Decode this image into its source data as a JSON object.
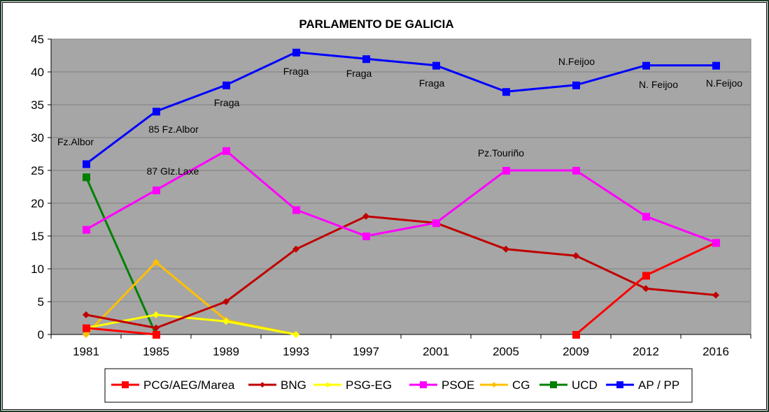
{
  "chart_data": {
    "type": "line",
    "title": "PARLAMENTO DE GALICIA",
    "xlabel": "",
    "ylabel": "",
    "ylim": [
      0,
      45
    ],
    "yticks": [
      0,
      5,
      10,
      15,
      20,
      25,
      30,
      35,
      40,
      45
    ],
    "grid": true,
    "legend_position": "bottom",
    "categories": [
      "1981",
      "1985",
      "1989",
      "1993",
      "1997",
      "2001",
      "2005",
      "2009",
      "2012",
      "2016"
    ],
    "series": [
      {
        "name": "PCG/AEG/Marea",
        "color": "#ff0000",
        "marker": "square",
        "values": [
          1,
          0,
          null,
          null,
          null,
          null,
          null,
          0,
          9,
          14
        ]
      },
      {
        "name": "BNG",
        "color": "#c00000",
        "marker": "diamond",
        "values": [
          3,
          1,
          5,
          13,
          18,
          17,
          13,
          12,
          7,
          6
        ]
      },
      {
        "name": "PSG-EG",
        "color": "#ffff00",
        "marker": "diamond",
        "values": [
          1,
          3,
          2,
          0,
          null,
          null,
          null,
          null,
          null,
          null
        ]
      },
      {
        "name": "PSOE",
        "color": "#ff00ff",
        "marker": "square",
        "values": [
          16,
          22,
          28,
          19,
          15,
          17,
          25,
          25,
          18,
          14
        ]
      },
      {
        "name": "CG",
        "color": "#ffc000",
        "marker": "diamond",
        "values": [
          0,
          11,
          2.2,
          0,
          null,
          null,
          null,
          null,
          null,
          null
        ]
      },
      {
        "name": "UCD",
        "color": "#008000",
        "marker": "square",
        "values": [
          24,
          0,
          null,
          null,
          null,
          null,
          null,
          null,
          null,
          null
        ]
      },
      {
        "name": "AP / PP",
        "color": "#0000ff",
        "marker": "square",
        "values": [
          26,
          34,
          38,
          43,
          42,
          41,
          37,
          38,
          41,
          41
        ]
      }
    ],
    "annotations": [
      {
        "text": "Fz.Albor",
        "x": "1981",
        "series": "AP / PP"
      },
      {
        "text": "85 Fz.Albor",
        "x": "1985",
        "series": "AP / PP"
      },
      {
        "text": "87 Glz.Laxe",
        "x": "1985",
        "series": "AP / PP"
      },
      {
        "text": "Fraga",
        "x": "1989",
        "series": "AP / PP"
      },
      {
        "text": "Fraga",
        "x": "1993",
        "series": "AP / PP"
      },
      {
        "text": "Fraga",
        "x": "1997",
        "series": "AP / PP"
      },
      {
        "text": "Fraga",
        "x": "2001",
        "series": "AP / PP"
      },
      {
        "text": "Pz.Touriño",
        "x": "2005",
        "series": "PSOE"
      },
      {
        "text": "N.Feijoo",
        "x": "2009",
        "series": "AP / PP"
      },
      {
        "text": "N. Feijoo",
        "x": "2012",
        "series": "AP / PP"
      },
      {
        "text": "N.Feijoo",
        "x": "2016",
        "series": "AP / PP"
      }
    ]
  },
  "colors": {
    "plot_background": "#a6a6a6",
    "gridline": "#808080",
    "frame_border": "#1e3d2a"
  }
}
